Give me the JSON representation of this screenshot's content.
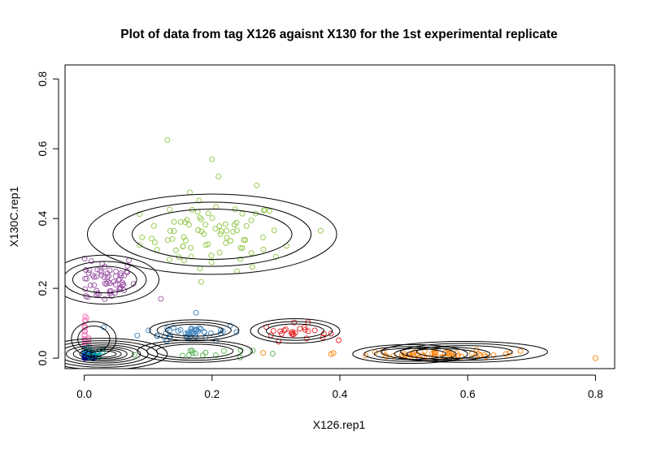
{
  "chart_data": {
    "type": "scatter",
    "title": "Plot of data from tag X126 agaisnt X130 for the 1st experimental replicate",
    "xlabel": "X126.rep1",
    "ylabel": "X130C.rep1",
    "xlim": [
      -0.03,
      0.83
    ],
    "ylim": [
      -0.03,
      0.84
    ],
    "xticks": [
      "0.0",
      "0.2",
      "0.4",
      "0.6",
      "0.8"
    ],
    "yticks": [
      "0.0",
      "0.2",
      "0.4",
      "0.6",
      "0.8"
    ],
    "grid": false,
    "legend": "none",
    "marker": "open-circle",
    "clusters": [
      {
        "color": "#8DC63F",
        "center": [
          0.2,
          0.35
        ],
        "spread": [
          0.055,
          0.05
        ],
        "n": 80,
        "outliers": [
          [
            0.13,
            0.625
          ],
          [
            0.2,
            0.57
          ],
          [
            0.21,
            0.52
          ],
          [
            0.27,
            0.495
          ],
          [
            0.37,
            0.365
          ],
          [
            0.3,
            0.29
          ]
        ]
      },
      {
        "color": "#984EA3",
        "center": [
          0.03,
          0.22
        ],
        "spread": [
          0.025,
          0.03
        ],
        "n": 60,
        "outliers": [
          [
            0.12,
            0.17
          ],
          [
            0.07,
            0.28
          ]
        ]
      },
      {
        "color": "#377EB8",
        "center": [
          0.17,
          0.075
        ],
        "spread": [
          0.04,
          0.012
        ],
        "n": 45,
        "outliers": [
          [
            0.175,
            0.13
          ]
        ]
      },
      {
        "color": "#E41A1C",
        "center": [
          0.33,
          0.075
        ],
        "spread": [
          0.025,
          0.012
        ],
        "n": 25,
        "outliers": []
      },
      {
        "color": "#4DAF4A",
        "center": [
          0.17,
          0.015
        ],
        "spread": [
          0.045,
          0.008
        ],
        "n": 15,
        "outliers": []
      },
      {
        "color": "#FF7F00",
        "center": [
          0.56,
          0.01
        ],
        "spread": [
          0.06,
          0.006
        ],
        "n": 55,
        "outliers": [
          [
            0.8,
            0.0
          ],
          [
            0.39,
            0.015
          ],
          [
            0.28,
            0.015
          ]
        ]
      },
      {
        "color": "#F781BF",
        "center": [
          0.0,
          0.05
        ],
        "spread": [
          0.004,
          0.03
        ],
        "n": 40,
        "outliers": []
      },
      {
        "color": "#0000CD",
        "center": [
          0.005,
          0.005
        ],
        "spread": [
          0.01,
          0.006
        ],
        "n": 60,
        "outliers": []
      },
      {
        "color": "#00A0A0",
        "center": [
          0.01,
          0.01
        ],
        "spread": [
          0.012,
          0.01
        ],
        "n": 20,
        "outliers": []
      }
    ],
    "contour_groups": [
      {
        "center": [
          0.2,
          0.355
        ],
        "radii": [
          [
            0.195,
            0.115
          ],
          [
            0.155,
            0.092
          ],
          [
            0.125,
            0.072
          ]
        ]
      },
      {
        "center": [
          0.032,
          0.225
        ],
        "radii": [
          [
            0.085,
            0.07
          ],
          [
            0.065,
            0.052
          ],
          [
            0.05,
            0.038
          ]
        ]
      },
      {
        "center": [
          0.172,
          0.08
        ],
        "radii": [
          [
            0.07,
            0.03
          ],
          [
            0.058,
            0.023
          ],
          [
            0.045,
            0.017
          ]
        ]
      },
      {
        "center": [
          0.173,
          0.02
        ],
        "radii": [
          [
            0.09,
            0.032
          ],
          [
            0.075,
            0.026
          ],
          [
            0.06,
            0.02
          ]
        ]
      },
      {
        "center": [
          0.33,
          0.078
        ],
        "radii": [
          [
            0.07,
            0.035
          ],
          [
            0.058,
            0.027
          ],
          [
            0.045,
            0.02
          ]
        ]
      },
      {
        "center": [
          0.51,
          0.012
        ],
        "radii": [
          [
            0.09,
            0.027
          ],
          [
            0.072,
            0.021
          ],
          [
            0.056,
            0.016
          ]
        ]
      },
      {
        "center": [
          0.595,
          0.018
        ],
        "radii": [
          [
            0.13,
            0.03
          ],
          [
            0.1,
            0.024
          ],
          [
            0.075,
            0.018
          ]
        ]
      },
      {
        "center": [
          0.56,
          0.012
        ],
        "radii": [
          [
            0.075,
            0.02
          ],
          [
            0.055,
            0.015
          ]
        ]
      },
      {
        "center": [
          0.015,
          0.055
        ],
        "radii": [
          [
            0.035,
            0.05
          ],
          [
            0.025,
            0.037
          ]
        ]
      },
      {
        "center": [
          0.03,
          0.012
        ],
        "radii": [
          [
            0.1,
            0.045
          ],
          [
            0.085,
            0.038
          ],
          [
            0.07,
            0.032
          ],
          [
            0.058,
            0.026
          ],
          [
            0.047,
            0.021
          ],
          [
            0.037,
            0.017
          ],
          [
            0.028,
            0.013
          ],
          [
            0.02,
            0.009
          ]
        ]
      }
    ]
  }
}
